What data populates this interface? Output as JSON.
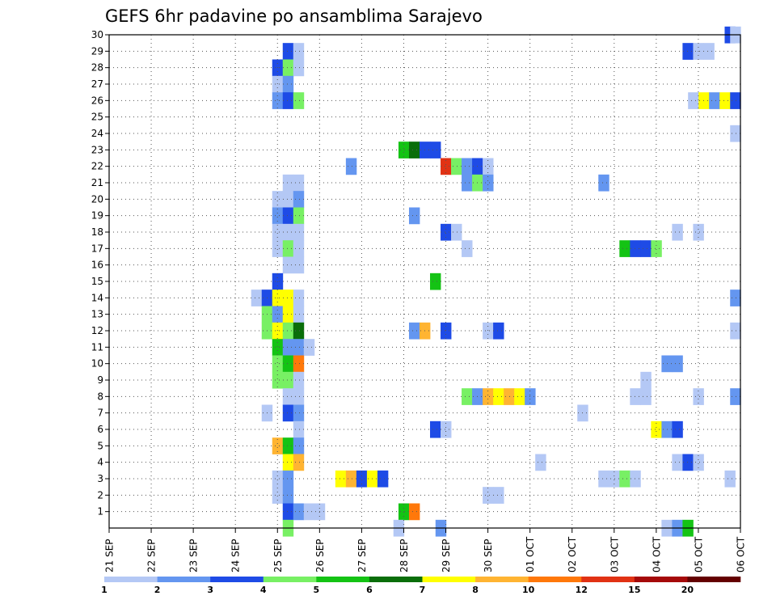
{
  "chart_data": {
    "type": "heatmap",
    "title": "GEFS 6hr padavine po ansamblima Sarajevo",
    "x_tick_labels": [
      "21 SEP",
      "22 SEP",
      "23 SEP",
      "24 SEP",
      "25 SEP",
      "26 SEP",
      "27 SEP",
      "28 SEP",
      "29 SEP",
      "30 SEP",
      "01 OCT",
      "02 OCT",
      "03 OCT",
      "04 OCT",
      "05 OCT",
      "06 OCT"
    ],
    "x_range_days": [
      0,
      15
    ],
    "y_range_members": [
      0,
      30
    ],
    "y_tick_labels": [
      "1",
      "2",
      "3",
      "4",
      "5",
      "6",
      "7",
      "8",
      "9",
      "10",
      "11",
      "12",
      "13",
      "14",
      "15",
      "16",
      "17",
      "18",
      "19",
      "20",
      "21",
      "22",
      "23",
      "24",
      "25",
      "26",
      "27",
      "28",
      "29",
      "30"
    ],
    "grid": true,
    "colorbar": {
      "labels": [
        "1",
        "2",
        "3",
        "4",
        "5",
        "6",
        "7",
        "8",
        "10",
        "12",
        "15",
        "20"
      ],
      "colors": [
        "#b4c8f5",
        "#6496f0",
        "#1e4be6",
        "#78f064",
        "#14c314",
        "#0a6e0a",
        "#ffff00",
        "#ffb432",
        "#ff780a",
        "#e13214",
        "#a50a0a",
        "#640000"
      ]
    },
    "cells": [
      [
        30,
        14.75,
        3
      ],
      [
        30,
        14.88,
        1
      ],
      [
        29,
        4.25,
        3
      ],
      [
        29,
        4.5,
        1
      ],
      [
        29,
        13.75,
        3
      ],
      [
        29,
        14.0,
        1
      ],
      [
        29,
        14.25,
        1
      ],
      [
        28,
        4.0,
        3
      ],
      [
        28,
        4.25,
        4
      ],
      [
        28,
        4.5,
        1
      ],
      [
        27,
        4.0,
        1
      ],
      [
        27,
        4.25,
        2
      ],
      [
        26,
        4.0,
        2
      ],
      [
        26,
        4.25,
        3
      ],
      [
        26,
        4.5,
        4
      ],
      [
        26,
        13.88,
        1
      ],
      [
        26,
        14.13,
        7
      ],
      [
        26,
        14.38,
        2
      ],
      [
        26,
        14.63,
        7
      ],
      [
        26,
        14.88,
        3
      ],
      [
        24,
        14.88,
        1
      ],
      [
        23,
        7.0,
        5
      ],
      [
        23,
        7.25,
        6
      ],
      [
        23,
        7.5,
        3
      ],
      [
        23,
        7.75,
        3
      ],
      [
        22,
        5.75,
        2
      ],
      [
        22,
        8.0,
        10
      ],
      [
        22,
        8.25,
        4
      ],
      [
        22,
        8.5,
        2
      ],
      [
        22,
        8.75,
        3
      ],
      [
        22,
        9.0,
        1
      ],
      [
        21,
        4.25,
        1
      ],
      [
        21,
        4.5,
        1
      ],
      [
        21,
        8.5,
        2
      ],
      [
        21,
        8.75,
        4
      ],
      [
        21,
        9.0,
        2
      ],
      [
        21,
        11.75,
        2
      ],
      [
        20,
        4.0,
        1
      ],
      [
        20,
        4.25,
        1
      ],
      [
        20,
        4.5,
        2
      ],
      [
        19,
        4.0,
        2
      ],
      [
        19,
        4.25,
        3
      ],
      [
        19,
        4.5,
        4
      ],
      [
        19,
        7.25,
        2
      ],
      [
        18,
        4.0,
        1
      ],
      [
        18,
        4.25,
        1
      ],
      [
        18,
        4.5,
        1
      ],
      [
        18,
        8.0,
        3
      ],
      [
        18,
        8.25,
        1
      ],
      [
        18,
        13.5,
        1
      ],
      [
        18,
        14.0,
        1
      ],
      [
        17,
        4.0,
        1
      ],
      [
        17,
        4.25,
        4
      ],
      [
        17,
        4.5,
        1
      ],
      [
        17,
        8.5,
        1
      ],
      [
        17,
        12.25,
        5
      ],
      [
        17,
        12.5,
        3
      ],
      [
        17,
        12.75,
        3
      ],
      [
        17,
        13.0,
        4
      ],
      [
        16,
        4.25,
        1
      ],
      [
        16,
        4.5,
        1
      ],
      [
        15,
        4.0,
        3
      ],
      [
        15,
        7.75,
        5
      ],
      [
        14,
        3.5,
        1
      ],
      [
        14,
        3.75,
        3
      ],
      [
        14,
        4.0,
        7
      ],
      [
        14,
        4.25,
        7
      ],
      [
        14,
        4.5,
        1
      ],
      [
        14,
        14.88,
        2
      ],
      [
        13,
        3.75,
        4
      ],
      [
        13,
        4.0,
        2
      ],
      [
        13,
        4.25,
        7
      ],
      [
        13,
        4.5,
        1
      ],
      [
        12,
        3.75,
        4
      ],
      [
        12,
        4.0,
        7
      ],
      [
        12,
        4.25,
        4
      ],
      [
        12,
        4.5,
        6
      ],
      [
        12,
        7.25,
        2
      ],
      [
        12,
        7.5,
        8
      ],
      [
        12,
        8.0,
        3
      ],
      [
        12,
        9.0,
        1
      ],
      [
        12,
        9.25,
        3
      ],
      [
        12,
        14.88,
        1
      ],
      [
        11,
        4.0,
        5
      ],
      [
        11,
        4.25,
        2
      ],
      [
        11,
        4.5,
        2
      ],
      [
        11,
        4.75,
        1
      ],
      [
        10,
        4.0,
        4
      ],
      [
        10,
        4.25,
        5
      ],
      [
        10,
        4.5,
        9
      ],
      [
        10,
        13.25,
        2
      ],
      [
        10,
        13.5,
        2
      ],
      [
        9,
        4.0,
        4
      ],
      [
        9,
        4.25,
        4
      ],
      [
        9,
        4.5,
        1
      ],
      [
        9,
        12.75,
        1
      ],
      [
        8,
        4.25,
        1
      ],
      [
        8,
        4.5,
        1
      ],
      [
        8,
        8.5,
        4
      ],
      [
        8,
        8.75,
        2
      ],
      [
        8,
        9.0,
        8
      ],
      [
        8,
        9.25,
        7
      ],
      [
        8,
        9.5,
        8
      ],
      [
        8,
        9.75,
        7
      ],
      [
        8,
        10.0,
        2
      ],
      [
        8,
        12.5,
        1
      ],
      [
        8,
        12.75,
        1
      ],
      [
        8,
        14.0,
        1
      ],
      [
        8,
        14.88,
        2
      ],
      [
        7,
        3.75,
        1
      ],
      [
        7,
        4.25,
        3
      ],
      [
        7,
        4.5,
        2
      ],
      [
        7,
        11.25,
        1
      ],
      [
        6,
        4.5,
        1
      ],
      [
        6,
        7.75,
        3
      ],
      [
        6,
        8.0,
        1
      ],
      [
        6,
        13.0,
        7
      ],
      [
        6,
        13.25,
        2
      ],
      [
        6,
        13.5,
        3
      ],
      [
        5,
        4.0,
        8
      ],
      [
        5,
        4.25,
        5
      ],
      [
        5,
        4.5,
        2
      ],
      [
        4,
        4.25,
        7
      ],
      [
        4,
        4.5,
        8
      ],
      [
        4,
        10.25,
        1
      ],
      [
        4,
        13.5,
        1
      ],
      [
        4,
        13.75,
        3
      ],
      [
        4,
        14.0,
        1
      ],
      [
        3,
        4.0,
        1
      ],
      [
        3,
        4.25,
        2
      ],
      [
        3,
        5.5,
        7
      ],
      [
        3,
        5.75,
        8
      ],
      [
        3,
        6.0,
        3
      ],
      [
        3,
        6.25,
        7
      ],
      [
        3,
        6.5,
        3
      ],
      [
        3,
        11.75,
        1
      ],
      [
        3,
        12.0,
        1
      ],
      [
        3,
        12.25,
        4
      ],
      [
        3,
        12.5,
        1
      ],
      [
        3,
        14.75,
        1
      ],
      [
        2,
        4.0,
        1
      ],
      [
        2,
        4.25,
        2
      ],
      [
        2,
        9.0,
        1
      ],
      [
        2,
        9.25,
        1
      ],
      [
        1,
        4.25,
        3
      ],
      [
        1,
        4.5,
        2
      ],
      [
        1,
        4.75,
        1
      ],
      [
        1,
        5.0,
        1
      ],
      [
        1,
        7.0,
        5
      ],
      [
        1,
        7.25,
        9
      ],
      [
        0,
        4.25,
        4
      ],
      [
        0,
        6.88,
        1
      ],
      [
        0,
        7.88,
        2
      ],
      [
        0,
        13.25,
        1
      ],
      [
        0,
        13.5,
        2
      ],
      [
        0,
        13.75,
        5
      ]
    ]
  }
}
